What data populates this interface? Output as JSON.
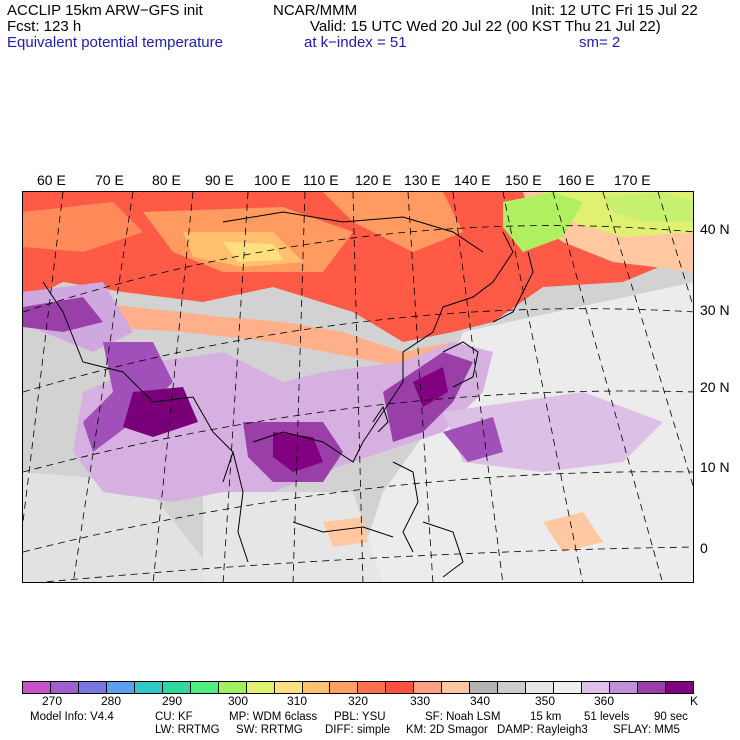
{
  "header": {
    "model": "ACCLIP 15km ARW−GFS init",
    "org": "NCAR/MMM",
    "init": "Init: 12 UTC Fri 15 Jul 22",
    "fcst": "Fcst:  123 h",
    "valid": "Valid: 15 UTC Wed 20 Jul 22 (00 KST Thu 21 Jul 22)",
    "field": "Equivalent potential temperature",
    "level": "at k−index =  51",
    "smooth": "sm= 2"
  },
  "lon_labels": [
    "60 E",
    "70 E",
    "80 E",
    "90 E",
    "100 E",
    "110 E",
    "120 E",
    "130 E",
    "140 E",
    "150 E",
    "160 E",
    "170 E"
  ],
  "lat_labels": [
    "40 N",
    "30 N",
    "20 N",
    "10 N",
    "0"
  ],
  "colorbar": {
    "unit": "K",
    "ticks": [
      "270",
      "280",
      "290",
      "300",
      "310",
      "320",
      "330",
      "340",
      "350",
      "360"
    ],
    "colors": [
      "#c850c8",
      "#9f5fd0",
      "#7878e0",
      "#5aa0f0",
      "#30c8c8",
      "#30d8a0",
      "#50f080",
      "#a0f060",
      "#e0f070",
      "#ffe080",
      "#ffc070",
      "#ffa060",
      "#ff7050",
      "#ff5040",
      "#ffa080",
      "#ffc8a0",
      "#b4b4b4",
      "#cccccc",
      "#e6e6e6",
      "#f0f0f0",
      "#e0c0e8",
      "#c090d8",
      "#9a3fa8",
      "#800080"
    ]
  },
  "model_info": {
    "row1": [
      "Model Info: V4.4",
      "CU: KF",
      "MP: WDM 6class",
      "PBL: YSU",
      "SF: Noah LSM",
      "15 km",
      "51 levels",
      "90 sec"
    ],
    "row2": [
      "LW: RRTMG",
      "SW: RRTMG",
      "DIFF: simple",
      "KM: 2D Smagor",
      "DAMP: Rayleigh3",
      "SFLAY: MM5"
    ]
  }
}
